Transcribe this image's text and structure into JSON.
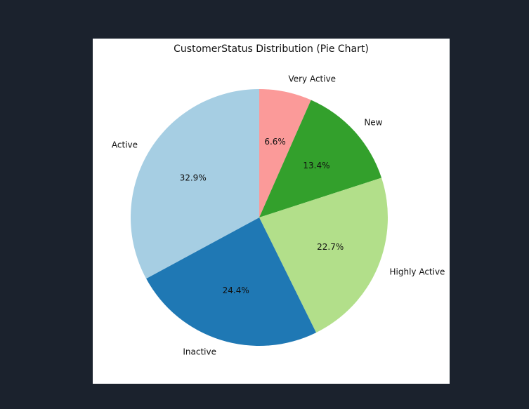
{
  "chart_data": {
    "type": "pie",
    "title": "CustomerStatus Distribution (Pie Chart)",
    "start_angle_deg": 90,
    "direction": "clockwise",
    "slices": [
      {
        "label": "Very Active",
        "value": 6.6,
        "pct_label": "6.6%",
        "color": "#fb9a99"
      },
      {
        "label": "New",
        "value": 13.4,
        "pct_label": "13.4%",
        "color": "#33a02c"
      },
      {
        "label": "Highly Active",
        "value": 22.7,
        "pct_label": "22.7%",
        "color": "#b2df8a"
      },
      {
        "label": "Inactive",
        "value": 24.4,
        "pct_label": "24.4%",
        "color": "#1f78b4"
      },
      {
        "label": "Active",
        "value": 32.9,
        "pct_label": "32.9%",
        "color": "#a6cee3"
      }
    ]
  }
}
